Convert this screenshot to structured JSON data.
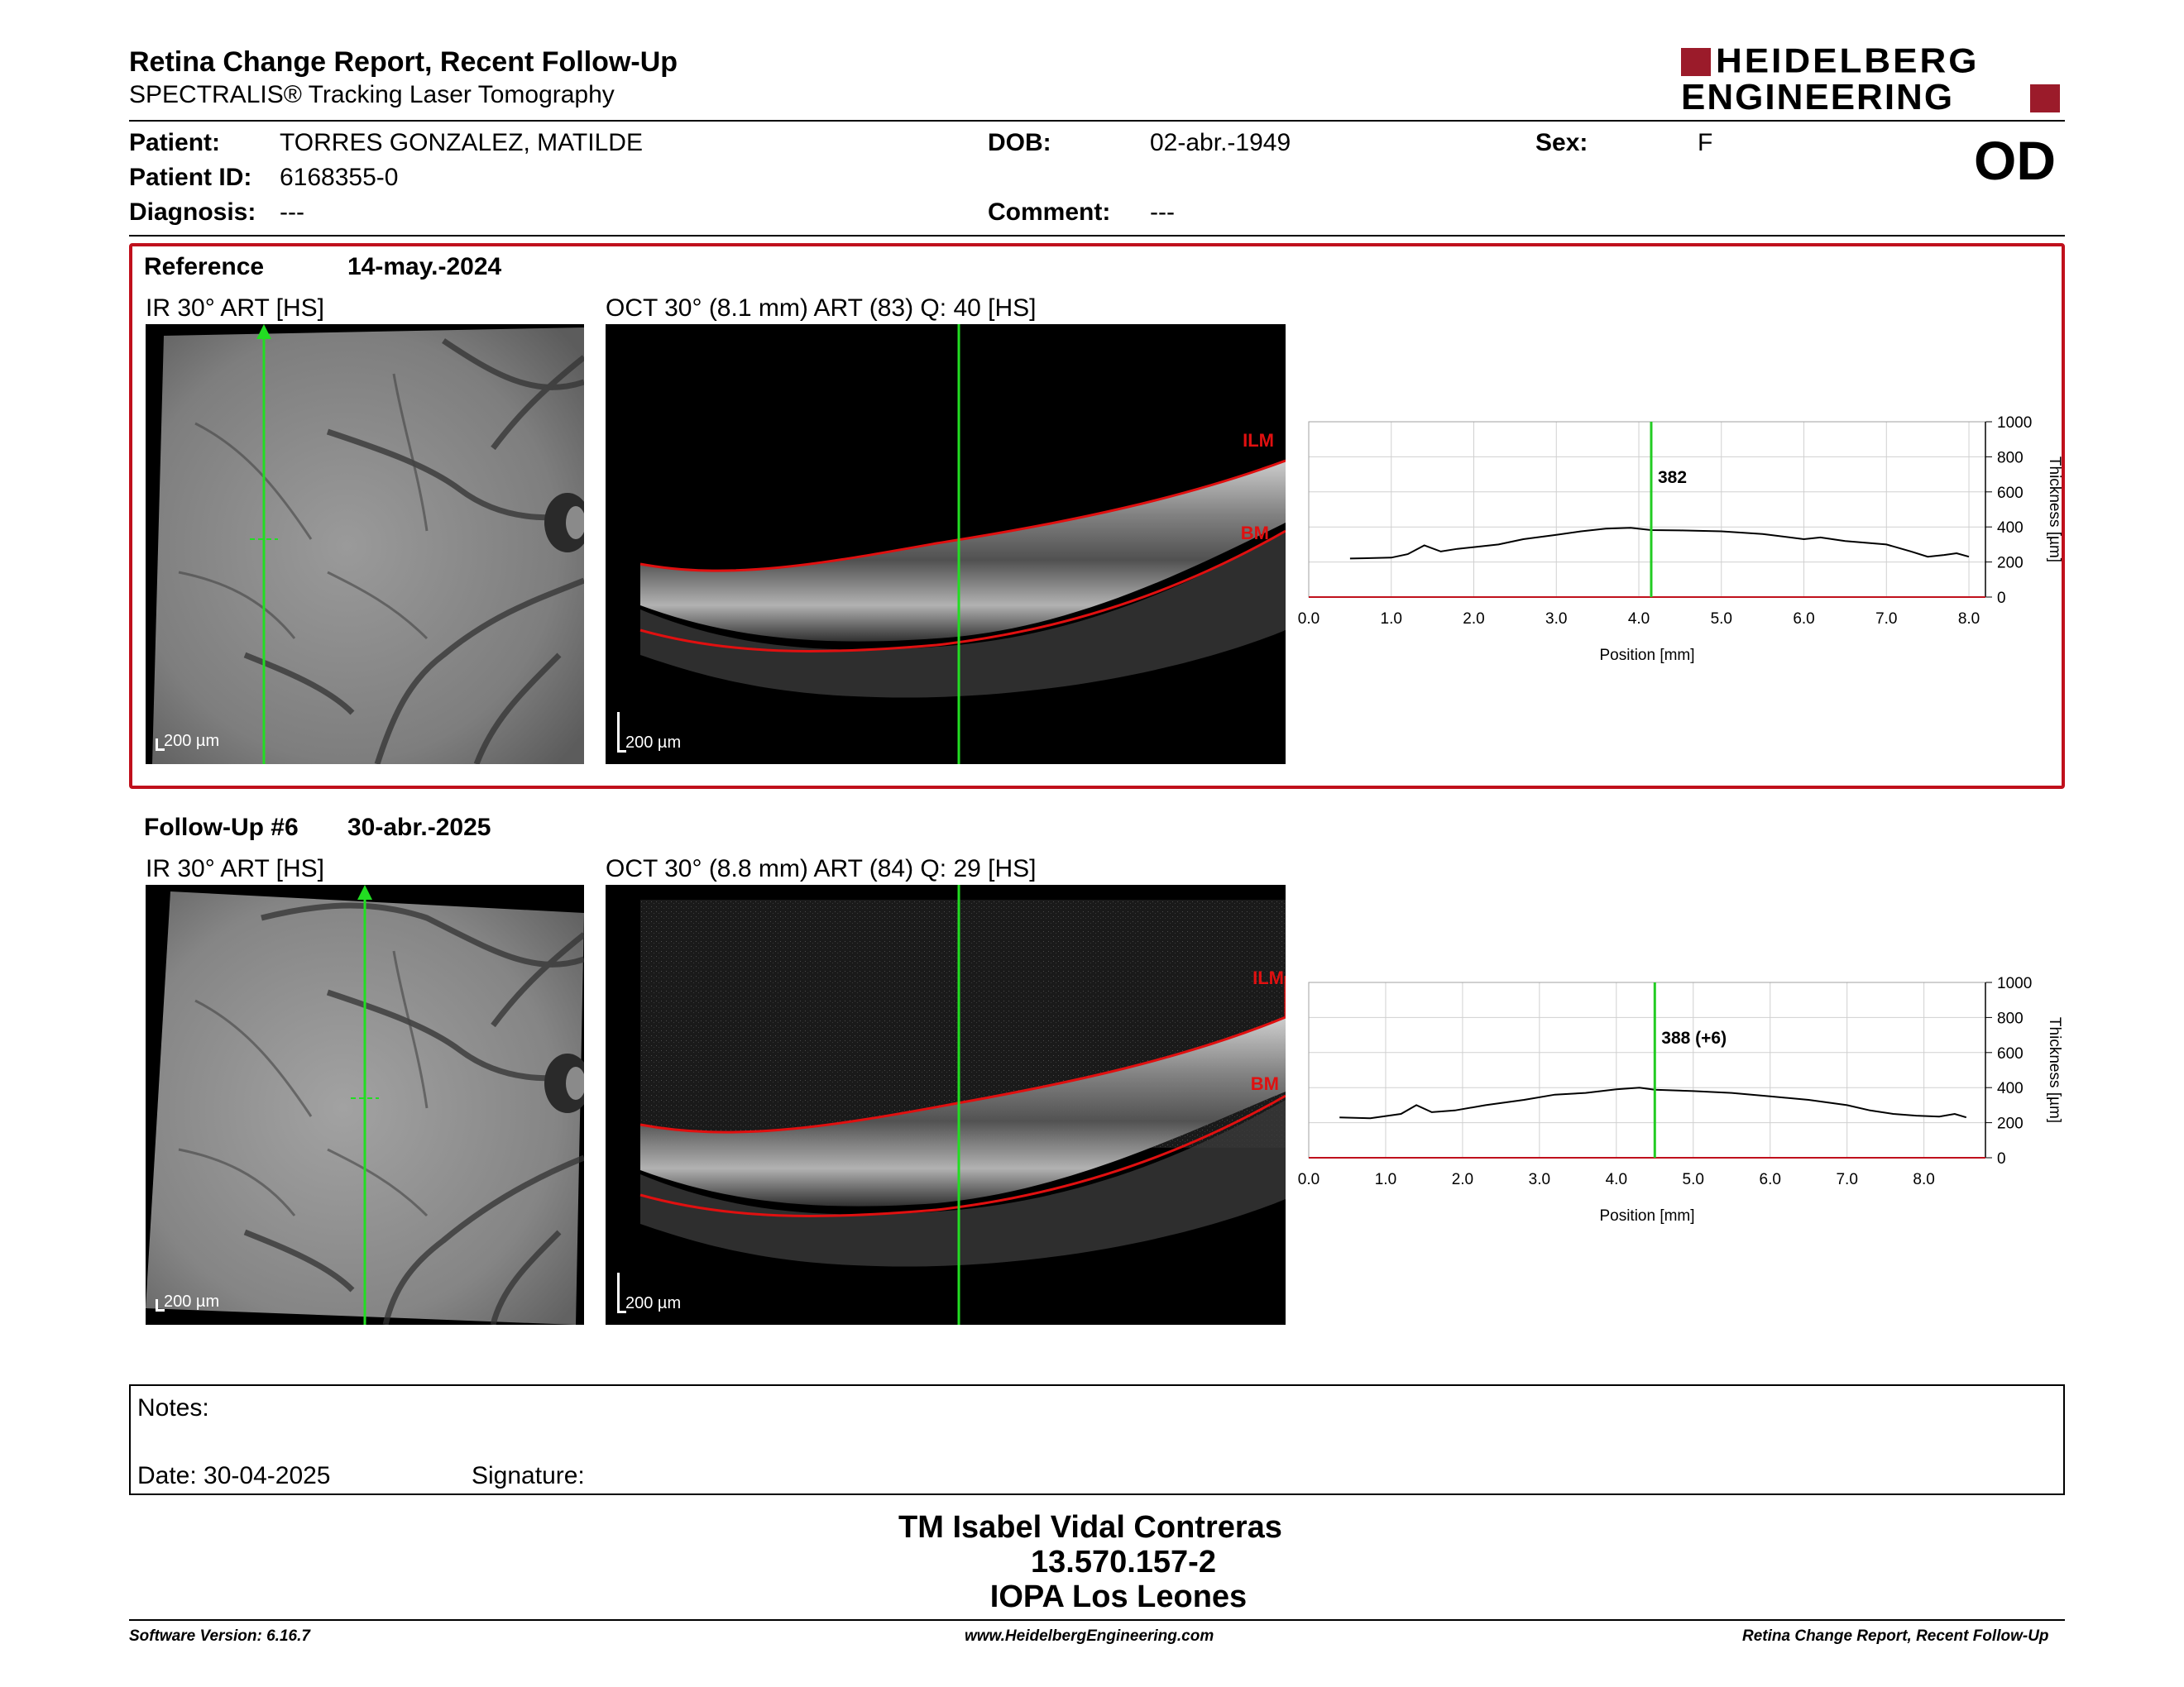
{
  "report": {
    "title": "Retina Change Report, Recent Follow-Up",
    "subtitle": "SPECTRALIS® Tracking Laser Tomography",
    "eye": "OD",
    "logo_line1": "HEIDELBERG",
    "logo_line2": "ENGINEERING",
    "brand_color": "#9b1b2a"
  },
  "patient": {
    "patient_label": "Patient:",
    "patient_value": "TORRES GONZALEZ, MATILDE",
    "id_label": "Patient ID:",
    "id_value": "6168355-0",
    "diagnosis_label": "Diagnosis:",
    "diagnosis_value": "---",
    "dob_label": "DOB:",
    "dob_value": "02-abr.-1949",
    "comment_label": "Comment:",
    "comment_value": "---",
    "sex_label": "Sex:",
    "sex_value": "F"
  },
  "reference": {
    "label": "Reference",
    "date": "14-may.-2024",
    "ir_title": "IR 30° ART [HS]",
    "oct_title": "OCT 30° (8.1 mm) ART (83) Q: 40 [HS]",
    "scale_ir": "200 µm",
    "scale_oct": "200 µm",
    "ilm_label": "ILM",
    "bm_label": "BM",
    "border_color": "#c0101c"
  },
  "followup": {
    "label": "Follow-Up #6",
    "date": "30-abr.-2025",
    "ir_title": "IR 30° ART [HS]",
    "oct_title": "OCT 30° (8.8 mm) ART (84) Q: 29 [HS]",
    "scale_ir": "200 µm",
    "scale_oct": "200 µm",
    "ilm_label": "ILM",
    "bm_label": "BM"
  },
  "chart_data": [
    {
      "type": "line",
      "xlabel": "Position [mm]",
      "ylabel": "Thickness [µm]",
      "xlim": [
        0,
        8.2
      ],
      "ylim": [
        0,
        1000
      ],
      "x_ticks": [
        "0.0",
        "1.0",
        "2.0",
        "3.0",
        "4.0",
        "5.0",
        "6.0",
        "7.0",
        "8.0"
      ],
      "y_ticks": [
        "0",
        "200",
        "400",
        "600",
        "800",
        "1000"
      ],
      "cursor_x": 4.15,
      "cursor_label": "382",
      "grid": true,
      "x": [
        0.5,
        1.0,
        1.2,
        1.4,
        1.6,
        1.8,
        2.0,
        2.3,
        2.6,
        3.0,
        3.3,
        3.6,
        3.9,
        4.15,
        4.5,
        5.0,
        5.5,
        6.0,
        6.2,
        6.5,
        7.0,
        7.3,
        7.5,
        7.7,
        7.85,
        8.0
      ],
      "y": [
        220,
        225,
        245,
        295,
        260,
        275,
        285,
        300,
        330,
        355,
        375,
        390,
        395,
        382,
        380,
        375,
        360,
        330,
        340,
        320,
        300,
        260,
        230,
        240,
        250,
        230
      ]
    },
    {
      "type": "line",
      "xlabel": "Position [mm]",
      "ylabel": "Thickness [µm]",
      "xlim": [
        0,
        8.8
      ],
      "ylim": [
        0,
        1000
      ],
      "x_ticks": [
        "0.0",
        "1.0",
        "2.0",
        "3.0",
        "4.0",
        "5.0",
        "6.0",
        "7.0",
        "8.0"
      ],
      "y_ticks": [
        "0",
        "200",
        "400",
        "600",
        "800",
        "1000"
      ],
      "cursor_x": 4.5,
      "cursor_label": "388 (+6)",
      "grid": true,
      "x": [
        0.4,
        0.8,
        1.2,
        1.4,
        1.6,
        1.9,
        2.3,
        2.8,
        3.2,
        3.6,
        4.0,
        4.3,
        4.5,
        5.0,
        5.5,
        6.0,
        6.5,
        7.0,
        7.3,
        7.6,
        7.9,
        8.2,
        8.4,
        8.55
      ],
      "y": [
        230,
        225,
        250,
        300,
        260,
        270,
        300,
        330,
        360,
        370,
        390,
        400,
        388,
        380,
        370,
        350,
        330,
        300,
        270,
        250,
        240,
        235,
        250,
        230
      ]
    }
  ],
  "notes": {
    "notes_label": "Notes:",
    "date_label": "Date: 30-04-2025",
    "signature_label": "Signature:"
  },
  "stamp": {
    "line1": "TM Isabel Vidal Contreras",
    "line2": "13.570.157-2",
    "line3": "IOPA Los Leones"
  },
  "footer": {
    "software": "Software Version: 6.16.7",
    "website": "www.HeidelbergEngineering.com",
    "report_name": "Retina Change Report, Recent Follow-Up"
  }
}
